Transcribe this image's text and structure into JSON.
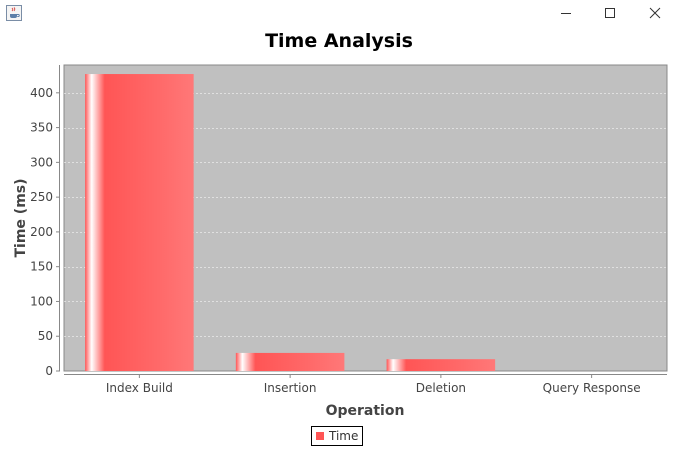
{
  "window": {
    "icon": "java-coffee-icon",
    "controls": [
      "minimize-icon",
      "maximize-icon",
      "close-icon"
    ]
  },
  "chart_data": {
    "type": "bar",
    "title": "Time Analysis",
    "xlabel": "Operation",
    "ylabel": "Time (ms)",
    "categories": [
      "Index Build",
      "Insertion",
      "Deletion",
      "Query Response"
    ],
    "series": [
      {
        "name": "Time",
        "values": [
          427,
          26,
          17,
          0
        ]
      }
    ],
    "ylim": [
      0,
      440
    ],
    "yticks": [
      0,
      50,
      100,
      150,
      200,
      250,
      300,
      350,
      400
    ],
    "grid": true,
    "legend": "bottom-center",
    "colors": {
      "plot_background": "#c0c0c0",
      "bar": "#ff5555",
      "gridline": "#ffffff"
    }
  }
}
